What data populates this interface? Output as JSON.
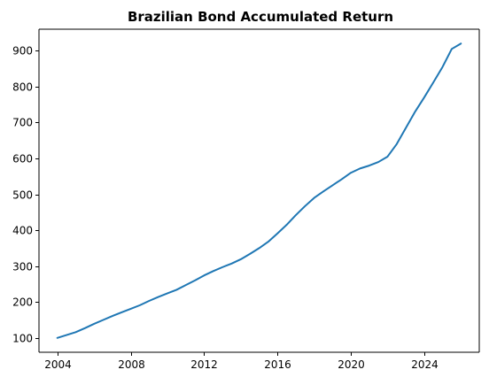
{
  "chart_data": {
    "type": "line",
    "title": "Brazilian Bond Accumulated Return",
    "xlabel": "",
    "ylabel": "",
    "xlim": [
      2003.0,
      2027.0
    ],
    "ylim": [
      60,
      960
    ],
    "xticks": [
      2004,
      2008,
      2012,
      2016,
      2020,
      2024
    ],
    "yticks": [
      100,
      200,
      300,
      400,
      500,
      600,
      700,
      800,
      900
    ],
    "grid": false,
    "series": [
      {
        "name": "Accumulated Return",
        "color": "#1f77b4",
        "x": [
          2004.0,
          2004.5,
          2005.0,
          2005.5,
          2006.0,
          2006.5,
          2007.0,
          2007.5,
          2008.0,
          2008.5,
          2009.0,
          2009.5,
          2010.0,
          2010.5,
          2011.0,
          2011.5,
          2012.0,
          2012.5,
          2013.0,
          2013.5,
          2014.0,
          2014.5,
          2015.0,
          2015.5,
          2016.0,
          2016.5,
          2017.0,
          2017.5,
          2018.0,
          2018.5,
          2019.0,
          2019.5,
          2020.0,
          2020.5,
          2021.0,
          2021.5,
          2022.0,
          2022.5,
          2023.0,
          2023.5,
          2024.0,
          2024.5,
          2025.0,
          2025.5,
          2026.0
        ],
        "values": [
          100,
          108,
          116,
          127,
          139,
          150,
          161,
          171,
          181,
          191,
          203,
          214,
          224,
          234,
          247,
          260,
          274,
          286,
          297,
          307,
          319,
          334,
          350,
          368,
          391,
          415,
          442,
          467,
          490,
          508,
          525,
          542,
          560,
          572,
          580,
          590,
          605,
          640,
          685,
          730,
          770,
          812,
          855,
          905,
          920
        ]
      }
    ]
  }
}
